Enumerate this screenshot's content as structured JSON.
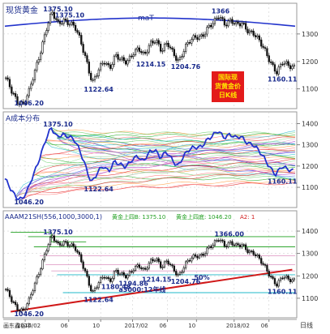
{
  "colors": {
    "background": "#ffffff",
    "frame": "#9a9a9a",
    "grid": "#c8c8c8",
    "candle": "#111111",
    "label_blue": "#1a2b8c",
    "curve_blue": "#2233cc",
    "red_line": "#d01818",
    "green": "#22a022",
    "pink": "#e0a0c8",
    "cyan": "#20b8c8",
    "stamp_red": "#e31b1b",
    "stamp_yellow": "#ffe400"
  },
  "chart_data": [
    {
      "type": "line",
      "title": "现货黄金",
      "indicator_label": "maT",
      "stamp_text": [
        "国际现",
        "货黄金价",
        "日K线"
      ],
      "y_ticks": [
        1100,
        1200,
        1300
      ],
      "ylim": [
        1040,
        1400
      ],
      "x_labels": [],
      "annotations": [
        {
          "text": "1375.10",
          "x": 16,
          "y": 1375.1
        },
        {
          "text": "1375.10",
          "x": 20,
          "y": 1352
        },
        {
          "text": "1366",
          "x": 74,
          "y": 1366
        },
        {
          "text": "1214.15",
          "x": 48,
          "y": 1214.15
        },
        {
          "text": "1204.76",
          "x": 60,
          "y": 1204.76
        },
        {
          "text": "1122.64",
          "x": 30,
          "y": 1122.64
        },
        {
          "text": "1160.11",
          "x": 94,
          "y": 1160.11
        },
        {
          "text": "1046.20",
          "x": 6,
          "y": 1046.2
        }
      ]
    },
    {
      "type": "line",
      "title": "A成本分布",
      "y_ticks": [
        1100,
        1200,
        1300,
        1400
      ],
      "ylim": [
        1020,
        1440
      ],
      "annotations": [
        {
          "text": "1375.10",
          "x": 16,
          "y": 1375.1
        },
        {
          "text": "1122.64",
          "x": 30,
          "y": 1122.64
        },
        {
          "text": "1046.20",
          "x": 6,
          "y": 1046.2
        },
        {
          "text": "1160.11",
          "x": 94,
          "y": 1160.11
        }
      ]
    },
    {
      "type": "line",
      "title": "AAAM21SH(556,1000,3000,1)",
      "legend_items": [
        {
          "text": "黄金上四:",
          "color": "#22a022"
        },
        {
          "text": "B: 1375.10",
          "color": "#22a022"
        },
        {
          "text": "黄金上四:",
          "color": "#22a022"
        },
        {
          "text": "底: 1046.20",
          "color": "#22a022"
        },
        {
          "text": "A2: 1",
          "color": "#d01818"
        }
      ],
      "y_ticks": [
        1100,
        1200,
        1300,
        1400
      ],
      "ylim": [
        1020,
        1440
      ],
      "x_labels": [
        {
          "text": "2016/02",
          "x": 7
        },
        {
          "text": "06",
          "x": 22
        },
        {
          "text": "10",
          "x": 33
        },
        {
          "text": "2017/02",
          "x": 44
        },
        {
          "text": "06",
          "x": 56
        },
        {
          "text": "10",
          "x": 66
        },
        {
          "text": "2018/02",
          "x": 79
        },
        {
          "text": "06",
          "x": 91
        }
      ],
      "footer_left": "画东鑫谷中",
      "footer_right": "日线",
      "annotations": [
        {
          "text": "1375.10",
          "x": 16,
          "y": 1375.1
        },
        {
          "text": "1366.00",
          "x": 75,
          "y": 1366
        },
        {
          "text": "1214.15",
          "x": 50,
          "y": 1214.15
        },
        {
          "text": "1194.86",
          "x": 42,
          "y": 1194.86
        },
        {
          "text": "1180.48",
          "x": 36,
          "y": 1180.48
        },
        {
          "text": "1204.76",
          "x": 60,
          "y": 1204.76
        },
        {
          "text": "50%",
          "x": 68,
          "y": 1222
        },
        {
          "text": "a3000:12年线",
          "x": 42,
          "y": 1168
        },
        {
          "text": "1122.64",
          "x": 30,
          "y": 1122.64
        },
        {
          "text": "1160.11",
          "x": 94,
          "y": 1160.11
        },
        {
          "text": "1046.20",
          "x": 6,
          "y": 1046.2
        }
      ]
    }
  ],
  "price_series": {
    "anchors": [
      [
        0,
        1135
      ],
      [
        2,
        1090
      ],
      [
        4,
        1058
      ],
      [
        6,
        1046.2
      ],
      [
        8,
        1085
      ],
      [
        10,
        1160
      ],
      [
        12,
        1240
      ],
      [
        14,
        1320
      ],
      [
        16,
        1375.1
      ],
      [
        18,
        1335
      ],
      [
        20,
        1355
      ],
      [
        22,
        1342
      ],
      [
        24,
        1320
      ],
      [
        26,
        1270
      ],
      [
        28,
        1205
      ],
      [
        30,
        1122.64
      ],
      [
        32,
        1160
      ],
      [
        34,
        1200
      ],
      [
        36,
        1180.48
      ],
      [
        38,
        1225
      ],
      [
        40,
        1200
      ],
      [
        42,
        1194.86
      ],
      [
        44,
        1235
      ],
      [
        46,
        1250
      ],
      [
        48,
        1214.15
      ],
      [
        50,
        1262
      ],
      [
        52,
        1285
      ],
      [
        54,
        1240
      ],
      [
        56,
        1262
      ],
      [
        58,
        1228
      ],
      [
        60,
        1204.76
      ],
      [
        62,
        1250
      ],
      [
        64,
        1272
      ],
      [
        66,
        1288
      ],
      [
        68,
        1296
      ],
      [
        70,
        1322
      ],
      [
        72,
        1336
      ],
      [
        74,
        1366
      ],
      [
        76,
        1340
      ],
      [
        78,
        1350
      ],
      [
        80,
        1328
      ],
      [
        82,
        1338
      ],
      [
        84,
        1316
      ],
      [
        86,
        1302
      ],
      [
        88,
        1268
      ],
      [
        90,
        1236
      ],
      [
        92,
        1198
      ],
      [
        94,
        1160.11
      ],
      [
        96,
        1192
      ],
      [
        98,
        1185
      ]
    ]
  }
}
